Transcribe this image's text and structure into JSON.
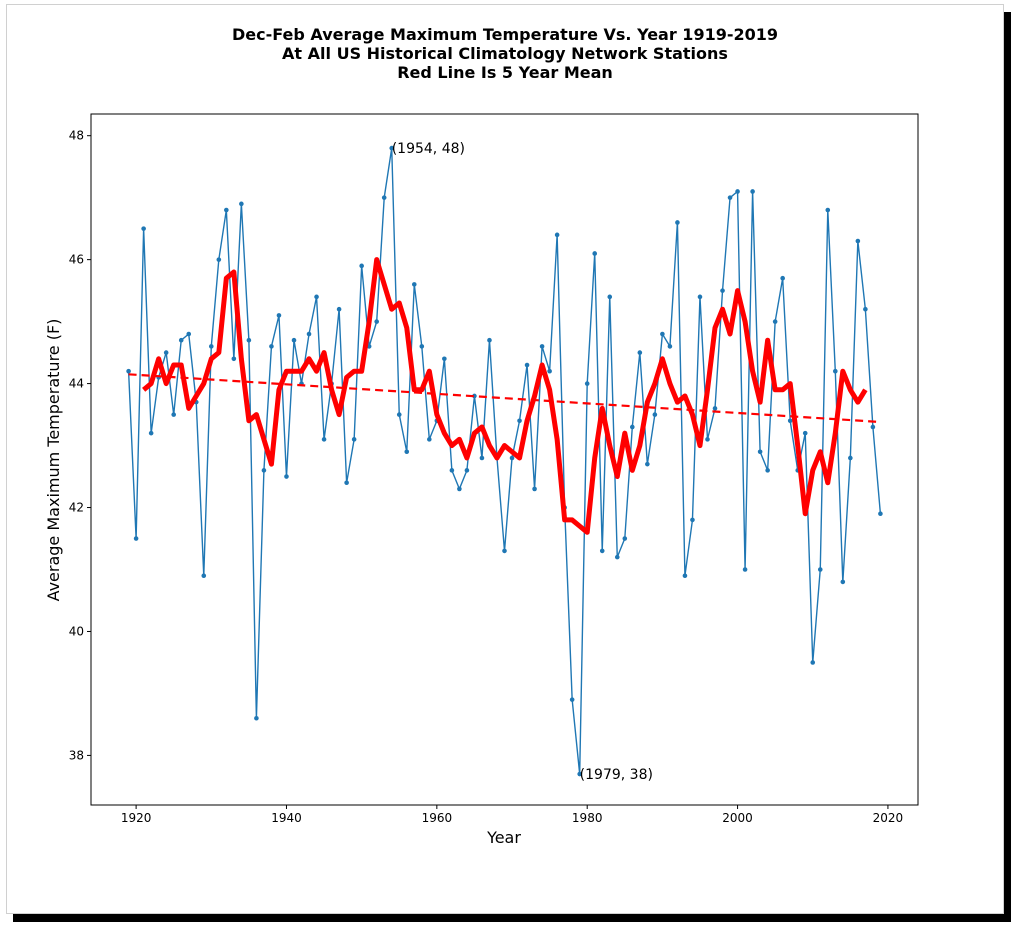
{
  "chart_data": {
    "type": "line",
    "title_lines": [
      "Dec-Feb Average Maximum Temperature Vs. Year 1919-2019",
      "At All US Historical Climatology Network Stations",
      "Red Line Is 5 Year Mean"
    ],
    "xlabel": "Year",
    "ylabel": "Average Maximum Temperature (F)",
    "xlim": [
      1914,
      2024
    ],
    "ylim": [
      37.2,
      48.35
    ],
    "xticks": [
      "1920",
      "1940",
      "1960",
      "1980",
      "2000",
      "2020"
    ],
    "yticks": [
      "38",
      "40",
      "42",
      "44",
      "46",
      "48"
    ],
    "grid": false,
    "annotations": [
      {
        "x": 1954,
        "y": 47.8,
        "text": "(1954, 48)"
      },
      {
        "x": 1979,
        "y": 37.7,
        "text": "(1979, 38)"
      }
    ],
    "series": [
      {
        "kind": "annual",
        "color": "#1f77b4",
        "x_start": 1919,
        "values": [
          44.2,
          41.5,
          46.5,
          43.2,
          44.1,
          44.5,
          43.5,
          44.7,
          44.8,
          43.7,
          40.9,
          44.6,
          46.0,
          46.8,
          44.4,
          46.9,
          44.7,
          38.6,
          42.6,
          44.6,
          45.1,
          42.5,
          44.7,
          44.0,
          44.8,
          45.4,
          43.1,
          44.0,
          45.2,
          42.4,
          43.1,
          45.9,
          44.6,
          45.0,
          47.0,
          47.8,
          43.5,
          42.9,
          45.6,
          44.6,
          43.1,
          43.4,
          44.4,
          42.6,
          42.3,
          42.6,
          43.8,
          42.8,
          44.7,
          42.8,
          41.3,
          42.8,
          43.4,
          44.3,
          42.3,
          44.6,
          44.2,
          46.4,
          42.0,
          38.9,
          37.7,
          44.0,
          46.1,
          41.3,
          45.4,
          41.2,
          41.5,
          43.3,
          44.5,
          42.7,
          43.5,
          44.8,
          44.6,
          46.6,
          40.9,
          41.8,
          45.4,
          43.1,
          43.6,
          45.5,
          47.0,
          47.1,
          41.0,
          47.1,
          42.9,
          42.6,
          45.0,
          45.7,
          43.4,
          42.6,
          43.2,
          39.5,
          41.0,
          46.8,
          44.2,
          40.8,
          42.8,
          46.3,
          45.2,
          43.3,
          41.9
        ]
      },
      {
        "kind": "five_year_mean",
        "color": "#ff0000",
        "x_start": 1921,
        "values": [
          43.9,
          44.0,
          44.4,
          44.0,
          44.3,
          44.3,
          43.6,
          43.8,
          44.0,
          44.4,
          44.5,
          45.7,
          45.8,
          44.4,
          43.4,
          43.5,
          43.1,
          42.7,
          43.9,
          44.2,
          44.2,
          44.2,
          44.4,
          44.2,
          44.5,
          43.9,
          43.5,
          44.1,
          44.2,
          44.2,
          45.0,
          46.0,
          45.6,
          45.2,
          45.3,
          44.9,
          43.9,
          43.9,
          44.2,
          43.5,
          43.2,
          43.0,
          43.1,
          42.8,
          43.2,
          43.3,
          43.0,
          42.8,
          43.0,
          42.9,
          42.8,
          43.4,
          43.8,
          44.3,
          43.9,
          43.1,
          41.8,
          41.8,
          41.7,
          41.6,
          42.8,
          43.6,
          43.0,
          42.5,
          43.2,
          42.6,
          43.0,
          43.7,
          44.0,
          44.4,
          44.0,
          43.7,
          43.8,
          43.5,
          43.0,
          43.9,
          44.9,
          45.2,
          44.8,
          45.5,
          45.0,
          44.2,
          43.7,
          44.7,
          43.9,
          43.9,
          44.0,
          43.0,
          41.9,
          42.6,
          42.9,
          42.4,
          43.2,
          44.2,
          43.9,
          43.7,
          43.9
        ]
      },
      {
        "kind": "trend",
        "color": "#ff0000",
        "style": "dashed",
        "x": [
          1919,
          2019
        ],
        "y": [
          44.15,
          43.38
        ]
      }
    ]
  }
}
